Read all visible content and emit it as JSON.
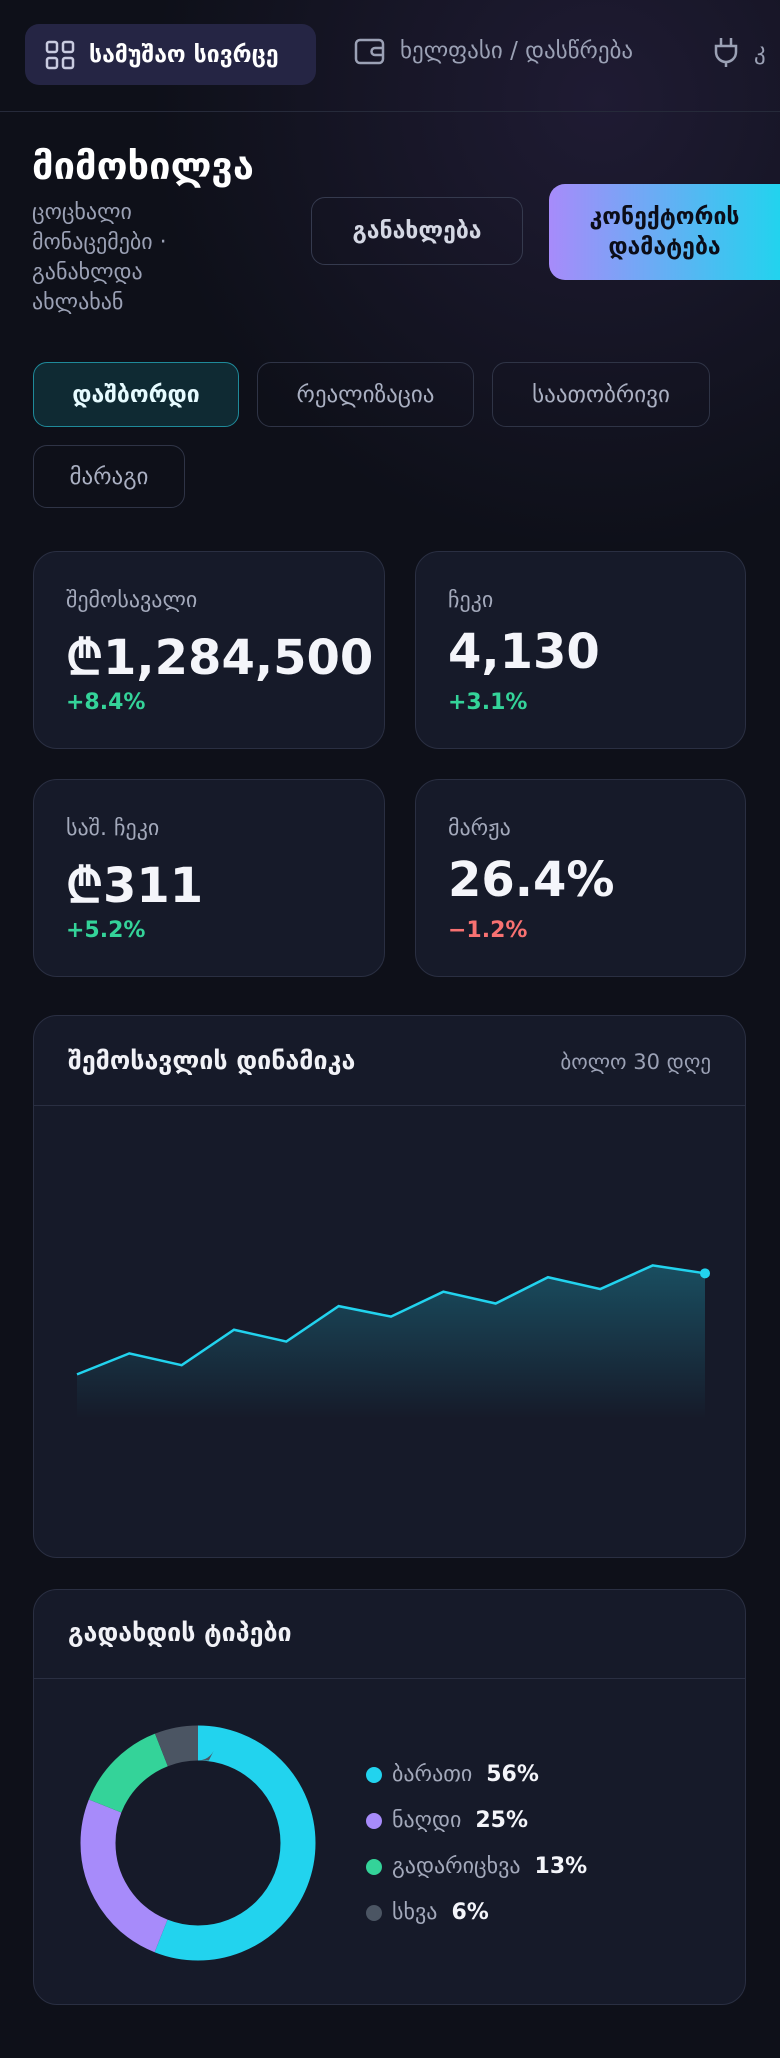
{
  "nav": {
    "items": [
      "სამუშაო სივრცე",
      "ხელფასი / დასწრება",
      "კ"
    ]
  },
  "header": {
    "title": "მიმოხილვა",
    "subtitle": "ცოცხალი მონაცემები · განახლდა ახლახან",
    "buttons": [
      "განახლება",
      "კონექტორის დამატება"
    ]
  },
  "tabs": [
    "დაშბორდი",
    "რეალიზაცია",
    "საათობრივი",
    "მარაგი"
  ],
  "kpis": [
    {
      "label": "შემოსავალი",
      "value": "₾1,284,500",
      "change": "+8.4%"
    },
    {
      "label": "ჩეკი",
      "value": "4,130",
      "change": "+3.1%"
    },
    {
      "label": "საშ. ჩეკი",
      "value": "₾311",
      "change": "+5.2%"
    },
    {
      "label": "მარჟა",
      "value": "26.4%",
      "change": "−1.2%"
    }
  ],
  "chart_data": [
    {
      "type": "line",
      "title": "შემოსავლის დინამიკა",
      "subtitle": "ბოლო 30 დღე",
      "categories": [
        null,
        null,
        null,
        null,
        null,
        null,
        null,
        null,
        null,
        null,
        null,
        null,
        null
      ],
      "values": [
        34,
        50,
        41,
        68,
        59,
        86,
        78,
        97,
        88,
        108,
        99,
        117,
        111
      ],
      "color": "#22d3ee",
      "ylim": [
        0,
        160
      ]
    },
    {
      "type": "donut",
      "title": "გადახდის ტიპები",
      "categories": [
        "ბარათი",
        "ნაღდი",
        "გადარიცხვა",
        "სხვა"
      ],
      "values": [
        56,
        25,
        13,
        6
      ],
      "value_labels": [
        "56%",
        "25%",
        "13%",
        "6%"
      ],
      "colors": [
        "#22d3ee",
        "#a78bfa",
        "#34d399",
        "#4b5563"
      ]
    }
  ]
}
